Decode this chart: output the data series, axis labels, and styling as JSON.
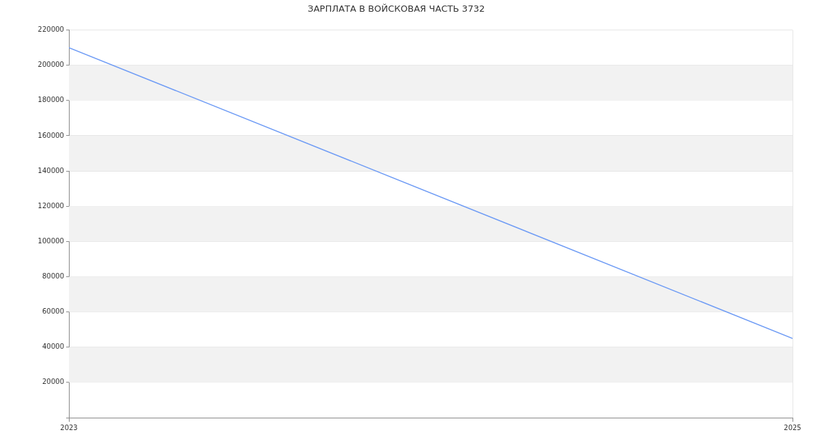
{
  "chart_data": {
    "type": "line",
    "title": "ЗАРПЛАТА В ВОЙСКОВАЯ ЧАСТЬ 3732",
    "x": [
      2023,
      2025
    ],
    "series": [
      {
        "color": "#6f9cf5",
        "values": [
          210000,
          45000
        ]
      }
    ],
    "xlim": [
      2023,
      2025
    ],
    "xticks": [
      2023,
      2025
    ],
    "ylim": [
      0,
      220000
    ],
    "yticks": [
      {
        "value": 0,
        "label": null
      },
      20000,
      40000,
      60000,
      80000,
      100000,
      120000,
      140000,
      160000,
      180000,
      200000,
      220000
    ],
    "grid": "y",
    "legend": false,
    "marker": "none",
    "line_style": "solid"
  }
}
